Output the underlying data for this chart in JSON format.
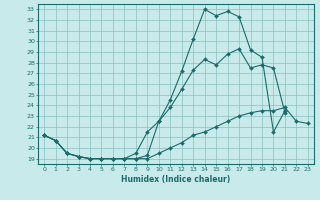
{
  "xlabel": "Humidex (Indice chaleur)",
  "background_color": "#c8eaea",
  "grid_color": "#8abfbf",
  "line_color": "#1a6b6b",
  "xlim": [
    -0.5,
    23.5
  ],
  "ylim": [
    18.5,
    33.5
  ],
  "yticks": [
    19,
    20,
    21,
    22,
    23,
    24,
    25,
    26,
    27,
    28,
    29,
    30,
    31,
    32,
    33
  ],
  "xticks": [
    0,
    1,
    2,
    3,
    4,
    5,
    6,
    7,
    8,
    9,
    10,
    11,
    12,
    13,
    14,
    15,
    16,
    17,
    18,
    19,
    20,
    21,
    22,
    23
  ],
  "series": [
    {
      "x": [
        0,
        1,
        2,
        3,
        4,
        5,
        6,
        7,
        8,
        9,
        10,
        11,
        12,
        13,
        14,
        15,
        16,
        17,
        18,
        19,
        20,
        21
      ],
      "y": [
        21.2,
        20.7,
        19.5,
        19.2,
        19.0,
        19.0,
        19.0,
        19.0,
        19.0,
        19.3,
        22.5,
        24.5,
        27.2,
        30.2,
        33.0,
        32.4,
        32.8,
        32.3,
        29.2,
        28.5,
        21.5,
        23.5
      ]
    },
    {
      "x": [
        0,
        1,
        2,
        3,
        4,
        5,
        6,
        7,
        8,
        9,
        10,
        11,
        12,
        13,
        14,
        15,
        16,
        17,
        18,
        19,
        20,
        21
      ],
      "y": [
        21.2,
        20.7,
        19.5,
        19.2,
        19.0,
        19.0,
        19.0,
        19.0,
        19.5,
        21.5,
        22.5,
        23.8,
        25.5,
        27.3,
        28.3,
        27.8,
        28.8,
        29.3,
        27.5,
        27.8,
        27.5,
        23.3
      ]
    },
    {
      "x": [
        0,
        1,
        2,
        3,
        4,
        5,
        6,
        7,
        8,
        9,
        10,
        11,
        12,
        13,
        14,
        15,
        16,
        17,
        18,
        19,
        20,
        21,
        22,
        23
      ],
      "y": [
        21.2,
        20.7,
        19.5,
        19.2,
        19.0,
        19.0,
        19.0,
        19.0,
        19.0,
        19.0,
        19.5,
        20.0,
        20.5,
        21.2,
        21.5,
        22.0,
        22.5,
        23.0,
        23.3,
        23.5,
        23.5,
        23.8,
        22.5,
        22.3
      ]
    }
  ]
}
